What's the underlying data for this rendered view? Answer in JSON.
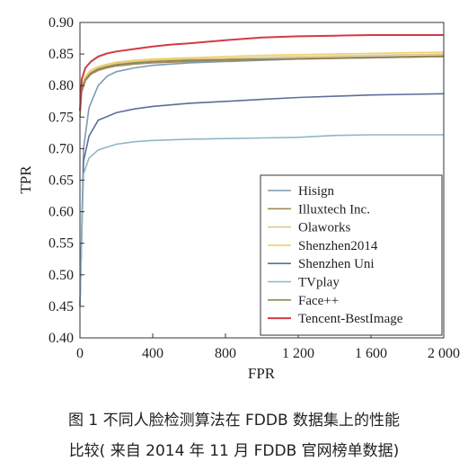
{
  "caption": {
    "line1": "图 1   不同人脸检测算法在 FDDB 数据集上的性能",
    "line2": "比较( 来自 2014 年 11 月 FDDB 官网榜单数据)"
  },
  "chart_data": {
    "type": "line",
    "title": "",
    "xlabel": "FPR",
    "ylabel": "TPR",
    "xlim": [
      0,
      2000
    ],
    "ylim": [
      0.4,
      0.9
    ],
    "xticks": [
      0,
      400,
      800,
      1200,
      1600,
      2000
    ],
    "xtick_labels": [
      "0",
      "400",
      "800",
      "1 200",
      "1 600",
      "2 000"
    ],
    "yticks": [
      0.4,
      0.45,
      0.5,
      0.55,
      0.6,
      0.65,
      0.7,
      0.75,
      0.8,
      0.85,
      0.9
    ],
    "ytick_labels": [
      "0.40",
      "0.45",
      "0.50",
      "0.55",
      "0.60",
      "0.65",
      "0.70",
      "0.75",
      "0.80",
      "0.85",
      "0.90"
    ],
    "grid": false,
    "legend": "bottom-right",
    "series": [
      {
        "name": "Hisign",
        "color": "#7d9ab4",
        "x": [
          0,
          20,
          50,
          100,
          150,
          200,
          300,
          400,
          600,
          800,
          1000,
          1200,
          1400,
          1600,
          1800,
          2000
        ],
        "y": [
          0.45,
          0.7,
          0.765,
          0.8,
          0.815,
          0.822,
          0.828,
          0.832,
          0.836,
          0.838,
          0.84,
          0.842,
          0.843,
          0.844,
          0.845,
          0.846
        ]
      },
      {
        "name": "Illuxtech Inc.",
        "color": "#a58a5a",
        "x": [
          0,
          10,
          30,
          60,
          100,
          150,
          200,
          300,
          400,
          600,
          800,
          1000,
          1200,
          1400,
          1600,
          1800,
          2000
        ],
        "y": [
          0.75,
          0.79,
          0.808,
          0.818,
          0.824,
          0.828,
          0.831,
          0.834,
          0.836,
          0.838,
          0.84,
          0.841,
          0.842,
          0.843,
          0.844,
          0.845,
          0.846
        ]
      },
      {
        "name": "Olaworks",
        "color": "#e3c391",
        "x": [
          0,
          10,
          30,
          60,
          100,
          150,
          200,
          300,
          400,
          600,
          800,
          1000,
          1200,
          1400,
          1600,
          1800,
          2000
        ],
        "y": [
          0.76,
          0.795,
          0.812,
          0.822,
          0.828,
          0.832,
          0.835,
          0.838,
          0.84,
          0.842,
          0.843,
          0.845,
          0.846,
          0.847,
          0.848,
          0.849,
          0.85
        ]
      },
      {
        "name": "Shenzhen2014",
        "color": "#ecd36a",
        "x": [
          0,
          10,
          30,
          60,
          100,
          150,
          200,
          300,
          400,
          600,
          800,
          1000,
          1200,
          1400,
          1600,
          1800,
          2000
        ],
        "y": [
          0.77,
          0.8,
          0.815,
          0.825,
          0.83,
          0.834,
          0.837,
          0.84,
          0.842,
          0.844,
          0.846,
          0.848,
          0.849,
          0.85,
          0.851,
          0.852,
          0.853
        ]
      },
      {
        "name": "Shenzhen Uni",
        "color": "#5b6f99",
        "x": [
          0,
          20,
          50,
          100,
          200,
          300,
          400,
          600,
          800,
          1000,
          1200,
          1400,
          1600,
          1800,
          2000
        ],
        "y": [
          0.45,
          0.68,
          0.72,
          0.745,
          0.757,
          0.763,
          0.767,
          0.772,
          0.775,
          0.778,
          0.781,
          0.783,
          0.785,
          0.786,
          0.787
        ]
      },
      {
        "name": "TVplay",
        "color": "#8fb7c8",
        "x": [
          0,
          20,
          50,
          100,
          200,
          300,
          400,
          600,
          800,
          1000,
          1200,
          1400,
          1600,
          1800,
          2000
        ],
        "y": [
          0.45,
          0.66,
          0.685,
          0.698,
          0.707,
          0.711,
          0.713,
          0.715,
          0.716,
          0.717,
          0.718,
          0.721,
          0.722,
          0.722,
          0.722
        ]
      },
      {
        "name": "Face++",
        "color": "#8a8a55",
        "x": [
          0,
          10,
          30,
          60,
          100,
          150,
          200,
          300,
          400,
          600,
          800,
          1000,
          1200,
          1400,
          1600,
          1800,
          2000
        ],
        "y": [
          0.76,
          0.795,
          0.81,
          0.82,
          0.826,
          0.83,
          0.833,
          0.836,
          0.838,
          0.84,
          0.841,
          0.842,
          0.843,
          0.844,
          0.845,
          0.846,
          0.847
        ]
      },
      {
        "name": "Tencent-BestImage",
        "color": "#d43a45",
        "x": [
          0,
          10,
          30,
          60,
          100,
          150,
          200,
          300,
          400,
          500,
          600,
          800,
          1000,
          1200,
          1400,
          1600,
          1800,
          2000
        ],
        "y": [
          0.76,
          0.81,
          0.828,
          0.838,
          0.846,
          0.851,
          0.854,
          0.858,
          0.862,
          0.865,
          0.867,
          0.872,
          0.876,
          0.878,
          0.879,
          0.88,
          0.88,
          0.88
        ]
      }
    ]
  }
}
